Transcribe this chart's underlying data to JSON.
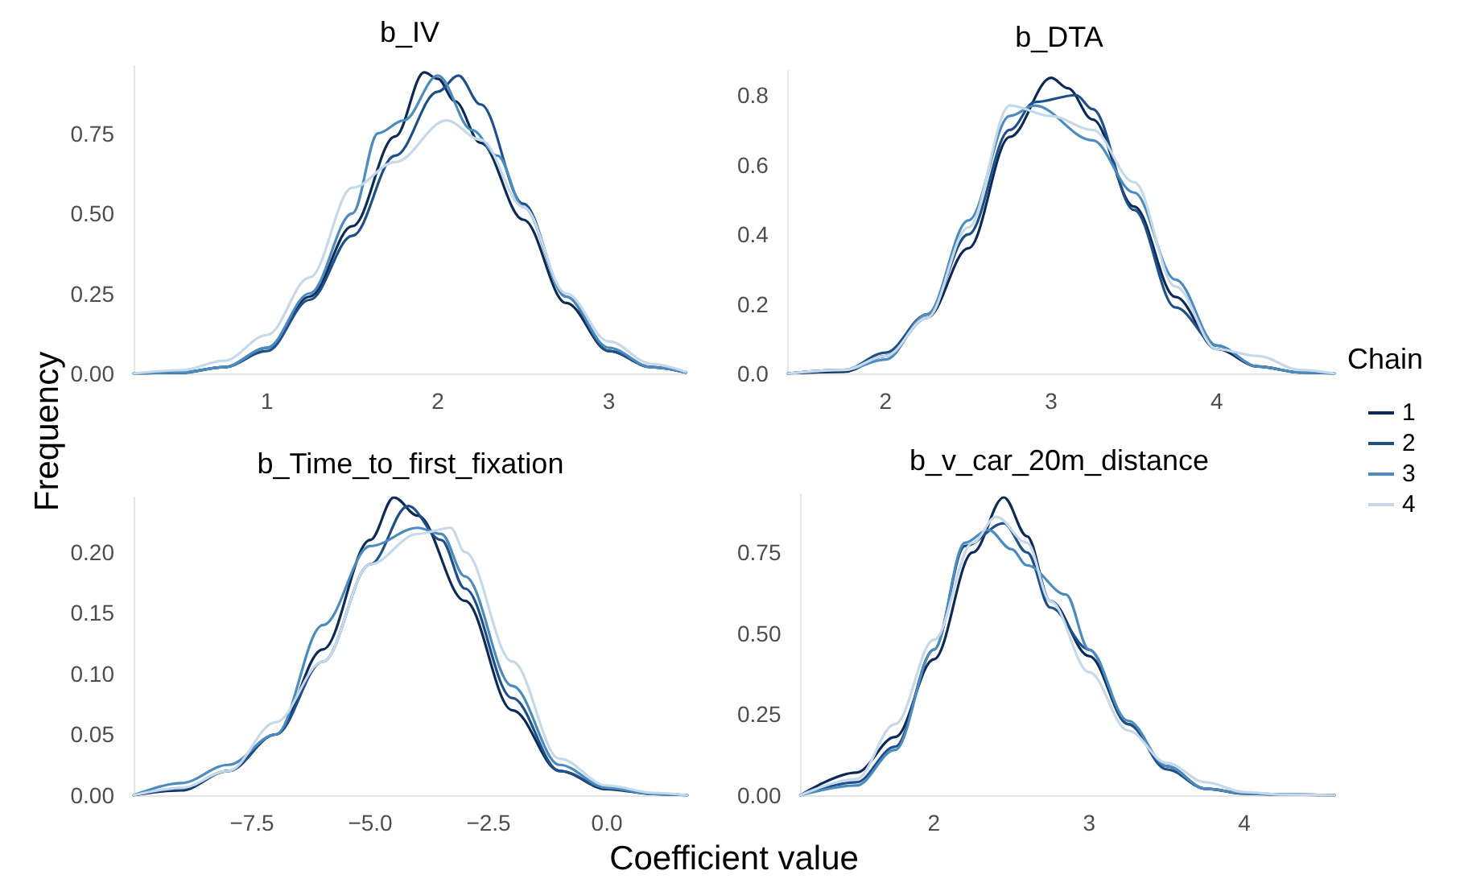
{
  "chart_data": [
    {
      "type": "line",
      "title": "b_IV",
      "ylabel": "Frequency",
      "marker": "none",
      "xlim": [
        0.22,
        3.45
      ],
      "ylim": [
        0,
        0.96
      ],
      "xticks": [
        1,
        2,
        3
      ],
      "yticks": [
        {
          "value": 0,
          "label": "0.00"
        },
        0.25,
        {
          "value": 0.5,
          "label": "0.50"
        },
        0.75
      ],
      "series": [
        {
          "color": "#0b2a55",
          "x": [
            0.22,
            0.5,
            0.75,
            1.0,
            1.25,
            1.5,
            1.75,
            1.92,
            2.0,
            2.1,
            2.25,
            2.5,
            2.75,
            3.0,
            3.25,
            3.45
          ],
          "values": [
            0,
            0.003,
            0.02,
            0.08,
            0.24,
            0.46,
            0.74,
            0.94,
            0.92,
            0.85,
            0.72,
            0.48,
            0.22,
            0.07,
            0.02,
            0.003
          ]
        },
        {
          "color": "#1e4f89",
          "x": [
            0.22,
            0.5,
            0.75,
            1.0,
            1.25,
            1.5,
            1.75,
            2.0,
            2.12,
            2.25,
            2.5,
            2.75,
            3.0,
            3.25,
            3.45
          ],
          "values": [
            0,
            0.002,
            0.02,
            0.07,
            0.23,
            0.43,
            0.68,
            0.88,
            0.93,
            0.84,
            0.53,
            0.24,
            0.07,
            0.02,
            0.004
          ]
        },
        {
          "color": "#4b8bbd",
          "x": [
            0.22,
            0.5,
            0.75,
            1.0,
            1.25,
            1.5,
            1.65,
            1.8,
            2.0,
            2.2,
            2.35,
            2.5,
            2.75,
            3.0,
            3.25,
            3.45
          ],
          "values": [
            0,
            0.003,
            0.02,
            0.08,
            0.25,
            0.5,
            0.75,
            0.79,
            0.93,
            0.76,
            0.68,
            0.52,
            0.24,
            0.08,
            0.02,
            0.003
          ]
        },
        {
          "color": "#c5d9ea",
          "x": [
            0.22,
            0.5,
            0.75,
            1.0,
            1.25,
            1.5,
            1.75,
            2.05,
            2.25,
            2.5,
            2.75,
            3.0,
            3.25,
            3.45
          ],
          "values": [
            0,
            0.01,
            0.04,
            0.12,
            0.3,
            0.58,
            0.66,
            0.79,
            0.73,
            0.52,
            0.25,
            0.1,
            0.03,
            0.005
          ]
        }
      ]
    },
    {
      "type": "line",
      "title": "b_DTA",
      "legend_title": "Chain",
      "legend": "right",
      "marker": "none",
      "xlim": [
        1.41,
        4.71
      ],
      "ylim": [
        0,
        0.87
      ],
      "xticks": [
        2,
        3,
        4
      ],
      "yticks": [
        {
          "value": 0,
          "label": "0.0"
        },
        0.2,
        0.4,
        0.6,
        0.8
      ],
      "series": [
        {
          "name": "1",
          "color": "#0b2a55",
          "x": [
            1.41,
            1.75,
            2.0,
            2.25,
            2.5,
            2.75,
            3.0,
            3.1,
            3.25,
            3.5,
            3.75,
            4.0,
            4.25,
            4.5,
            4.71
          ],
          "values": [
            0,
            0.005,
            0.05,
            0.16,
            0.36,
            0.68,
            0.85,
            0.82,
            0.73,
            0.48,
            0.22,
            0.07,
            0.02,
            0.003,
            0
          ]
        },
        {
          "name": "2",
          "color": "#1e4f89",
          "x": [
            1.41,
            1.75,
            2.0,
            2.25,
            2.5,
            2.75,
            2.9,
            3.15,
            3.25,
            3.5,
            3.75,
            4.0,
            4.25,
            4.5,
            4.71
          ],
          "values": [
            0,
            0.01,
            0.06,
            0.17,
            0.4,
            0.7,
            0.78,
            0.8,
            0.76,
            0.47,
            0.19,
            0.08,
            0.02,
            0.003,
            0
          ]
        },
        {
          "name": "3",
          "color": "#4b8bbd",
          "x": [
            1.41,
            1.75,
            2.0,
            2.25,
            2.5,
            2.75,
            2.9,
            3.25,
            3.5,
            3.75,
            4.0,
            4.25,
            4.5,
            4.71
          ],
          "values": [
            0,
            0.01,
            0.04,
            0.17,
            0.44,
            0.74,
            0.77,
            0.67,
            0.52,
            0.27,
            0.08,
            0.02,
            0.003,
            0
          ]
        },
        {
          "name": "4",
          "color": "#c5d9ea",
          "x": [
            1.41,
            1.75,
            2.0,
            2.25,
            2.5,
            2.75,
            3.0,
            3.25,
            3.5,
            3.75,
            4.0,
            4.25,
            4.5,
            4.71
          ],
          "values": [
            0,
            0.01,
            0.05,
            0.16,
            0.42,
            0.77,
            0.74,
            0.7,
            0.55,
            0.25,
            0.07,
            0.05,
            0.01,
            0
          ]
        }
      ]
    },
    {
      "type": "line",
      "title": "b_Time_to_first_fixation",
      "xlabel": "Coefficient value",
      "marker": "none",
      "xlim": [
        -10,
        1.7
      ],
      "ylim": [
        0,
        0.245
      ],
      "xticks": [
        {
          "value": -7.5,
          "label": "−7.5"
        },
        {
          "value": -5,
          "label": "−5.0"
        },
        {
          "value": -2.5,
          "label": "−2.5"
        },
        {
          "value": 0,
          "label": "0.0"
        }
      ],
      "yticks": [
        {
          "value": 0,
          "label": "0.00"
        },
        0.05,
        {
          "value": 0.1,
          "label": "0.10"
        },
        0.15,
        {
          "value": 0.2,
          "label": "0.20"
        }
      ],
      "series": [
        {
          "color": "#0b2a55",
          "x": [
            -10,
            -9,
            -8,
            -7,
            -6,
            -5,
            -4.5,
            -4,
            -3,
            -2,
            -1,
            0,
            1,
            1.7
          ],
          "values": [
            0,
            0.004,
            0.02,
            0.05,
            0.12,
            0.21,
            0.245,
            0.23,
            0.16,
            0.07,
            0.02,
            0.005,
            0.001,
            0
          ]
        },
        {
          "color": "#1e4f89",
          "x": [
            -10,
            -9,
            -8,
            -7,
            -6,
            -5,
            -4.2,
            -3.5,
            -3,
            -2,
            -1,
            0,
            1,
            1.7
          ],
          "values": [
            0,
            0.005,
            0.02,
            0.05,
            0.11,
            0.19,
            0.238,
            0.21,
            0.17,
            0.08,
            0.02,
            0.006,
            0.001,
            0
          ]
        },
        {
          "color": "#4b8bbd",
          "x": [
            -10,
            -9,
            -8,
            -7,
            -6,
            -5,
            -4,
            -3.5,
            -3,
            -2,
            -1,
            0,
            1,
            1.7
          ],
          "values": [
            0,
            0.01,
            0.025,
            0.05,
            0.14,
            0.205,
            0.22,
            0.215,
            0.18,
            0.09,
            0.025,
            0.006,
            0.001,
            0
          ]
        },
        {
          "color": "#c5d9ea",
          "x": [
            -10,
            -9,
            -8,
            -7,
            -6,
            -5,
            -4,
            -3.3,
            -3,
            -2,
            -1,
            0,
            1,
            1.7
          ],
          "values": [
            0,
            0.006,
            0.02,
            0.06,
            0.11,
            0.19,
            0.215,
            0.22,
            0.2,
            0.11,
            0.03,
            0.008,
            0.002,
            0
          ]
        }
      ]
    },
    {
      "type": "line",
      "title": "b_v_car_20m_distance",
      "marker": "none",
      "xlim": [
        1.14,
        4.58
      ],
      "ylim": [
        0,
        0.93
      ],
      "xticks": [
        2,
        3,
        4
      ],
      "yticks": [
        {
          "value": 0,
          "label": "0.00"
        },
        0.25,
        {
          "value": 0.5,
          "label": "0.50"
        },
        0.75
      ],
      "series": [
        {
          "color": "#0b2a55",
          "x": [
            1.14,
            1.5,
            1.75,
            2.0,
            2.25,
            2.45,
            2.6,
            2.75,
            3.0,
            3.25,
            3.5,
            3.75,
            4.0,
            4.25,
            4.58
          ],
          "values": [
            0,
            0.07,
            0.18,
            0.42,
            0.75,
            0.92,
            0.8,
            0.6,
            0.43,
            0.22,
            0.09,
            0.02,
            0.005,
            0.002,
            0
          ]
        },
        {
          "color": "#1e4f89",
          "x": [
            1.14,
            1.5,
            1.75,
            2.0,
            2.2,
            2.45,
            2.6,
            2.75,
            3.0,
            3.25,
            3.5,
            3.75,
            4.0,
            4.25,
            4.58
          ],
          "values": [
            0,
            0.04,
            0.15,
            0.45,
            0.77,
            0.84,
            0.75,
            0.58,
            0.45,
            0.22,
            0.08,
            0.02,
            0.006,
            0.002,
            0
          ]
        },
        {
          "color": "#4b8bbd",
          "x": [
            1.14,
            1.5,
            1.75,
            2.0,
            2.2,
            2.35,
            2.5,
            2.6,
            2.85,
            3.0,
            3.25,
            3.5,
            3.75,
            4.0,
            4.25,
            4.58
          ],
          "values": [
            0,
            0.03,
            0.14,
            0.45,
            0.78,
            0.82,
            0.76,
            0.71,
            0.62,
            0.45,
            0.23,
            0.09,
            0.02,
            0.006,
            0.002,
            0
          ]
        },
        {
          "color": "#c5d9ea",
          "x": [
            1.14,
            1.5,
            1.75,
            2.0,
            2.25,
            2.4,
            2.6,
            2.75,
            3.0,
            3.25,
            3.5,
            3.75,
            4.0,
            4.25,
            4.58
          ],
          "values": [
            0,
            0.05,
            0.22,
            0.48,
            0.78,
            0.86,
            0.78,
            0.6,
            0.38,
            0.2,
            0.1,
            0.04,
            0.01,
            0.002,
            0
          ]
        }
      ]
    }
  ]
}
